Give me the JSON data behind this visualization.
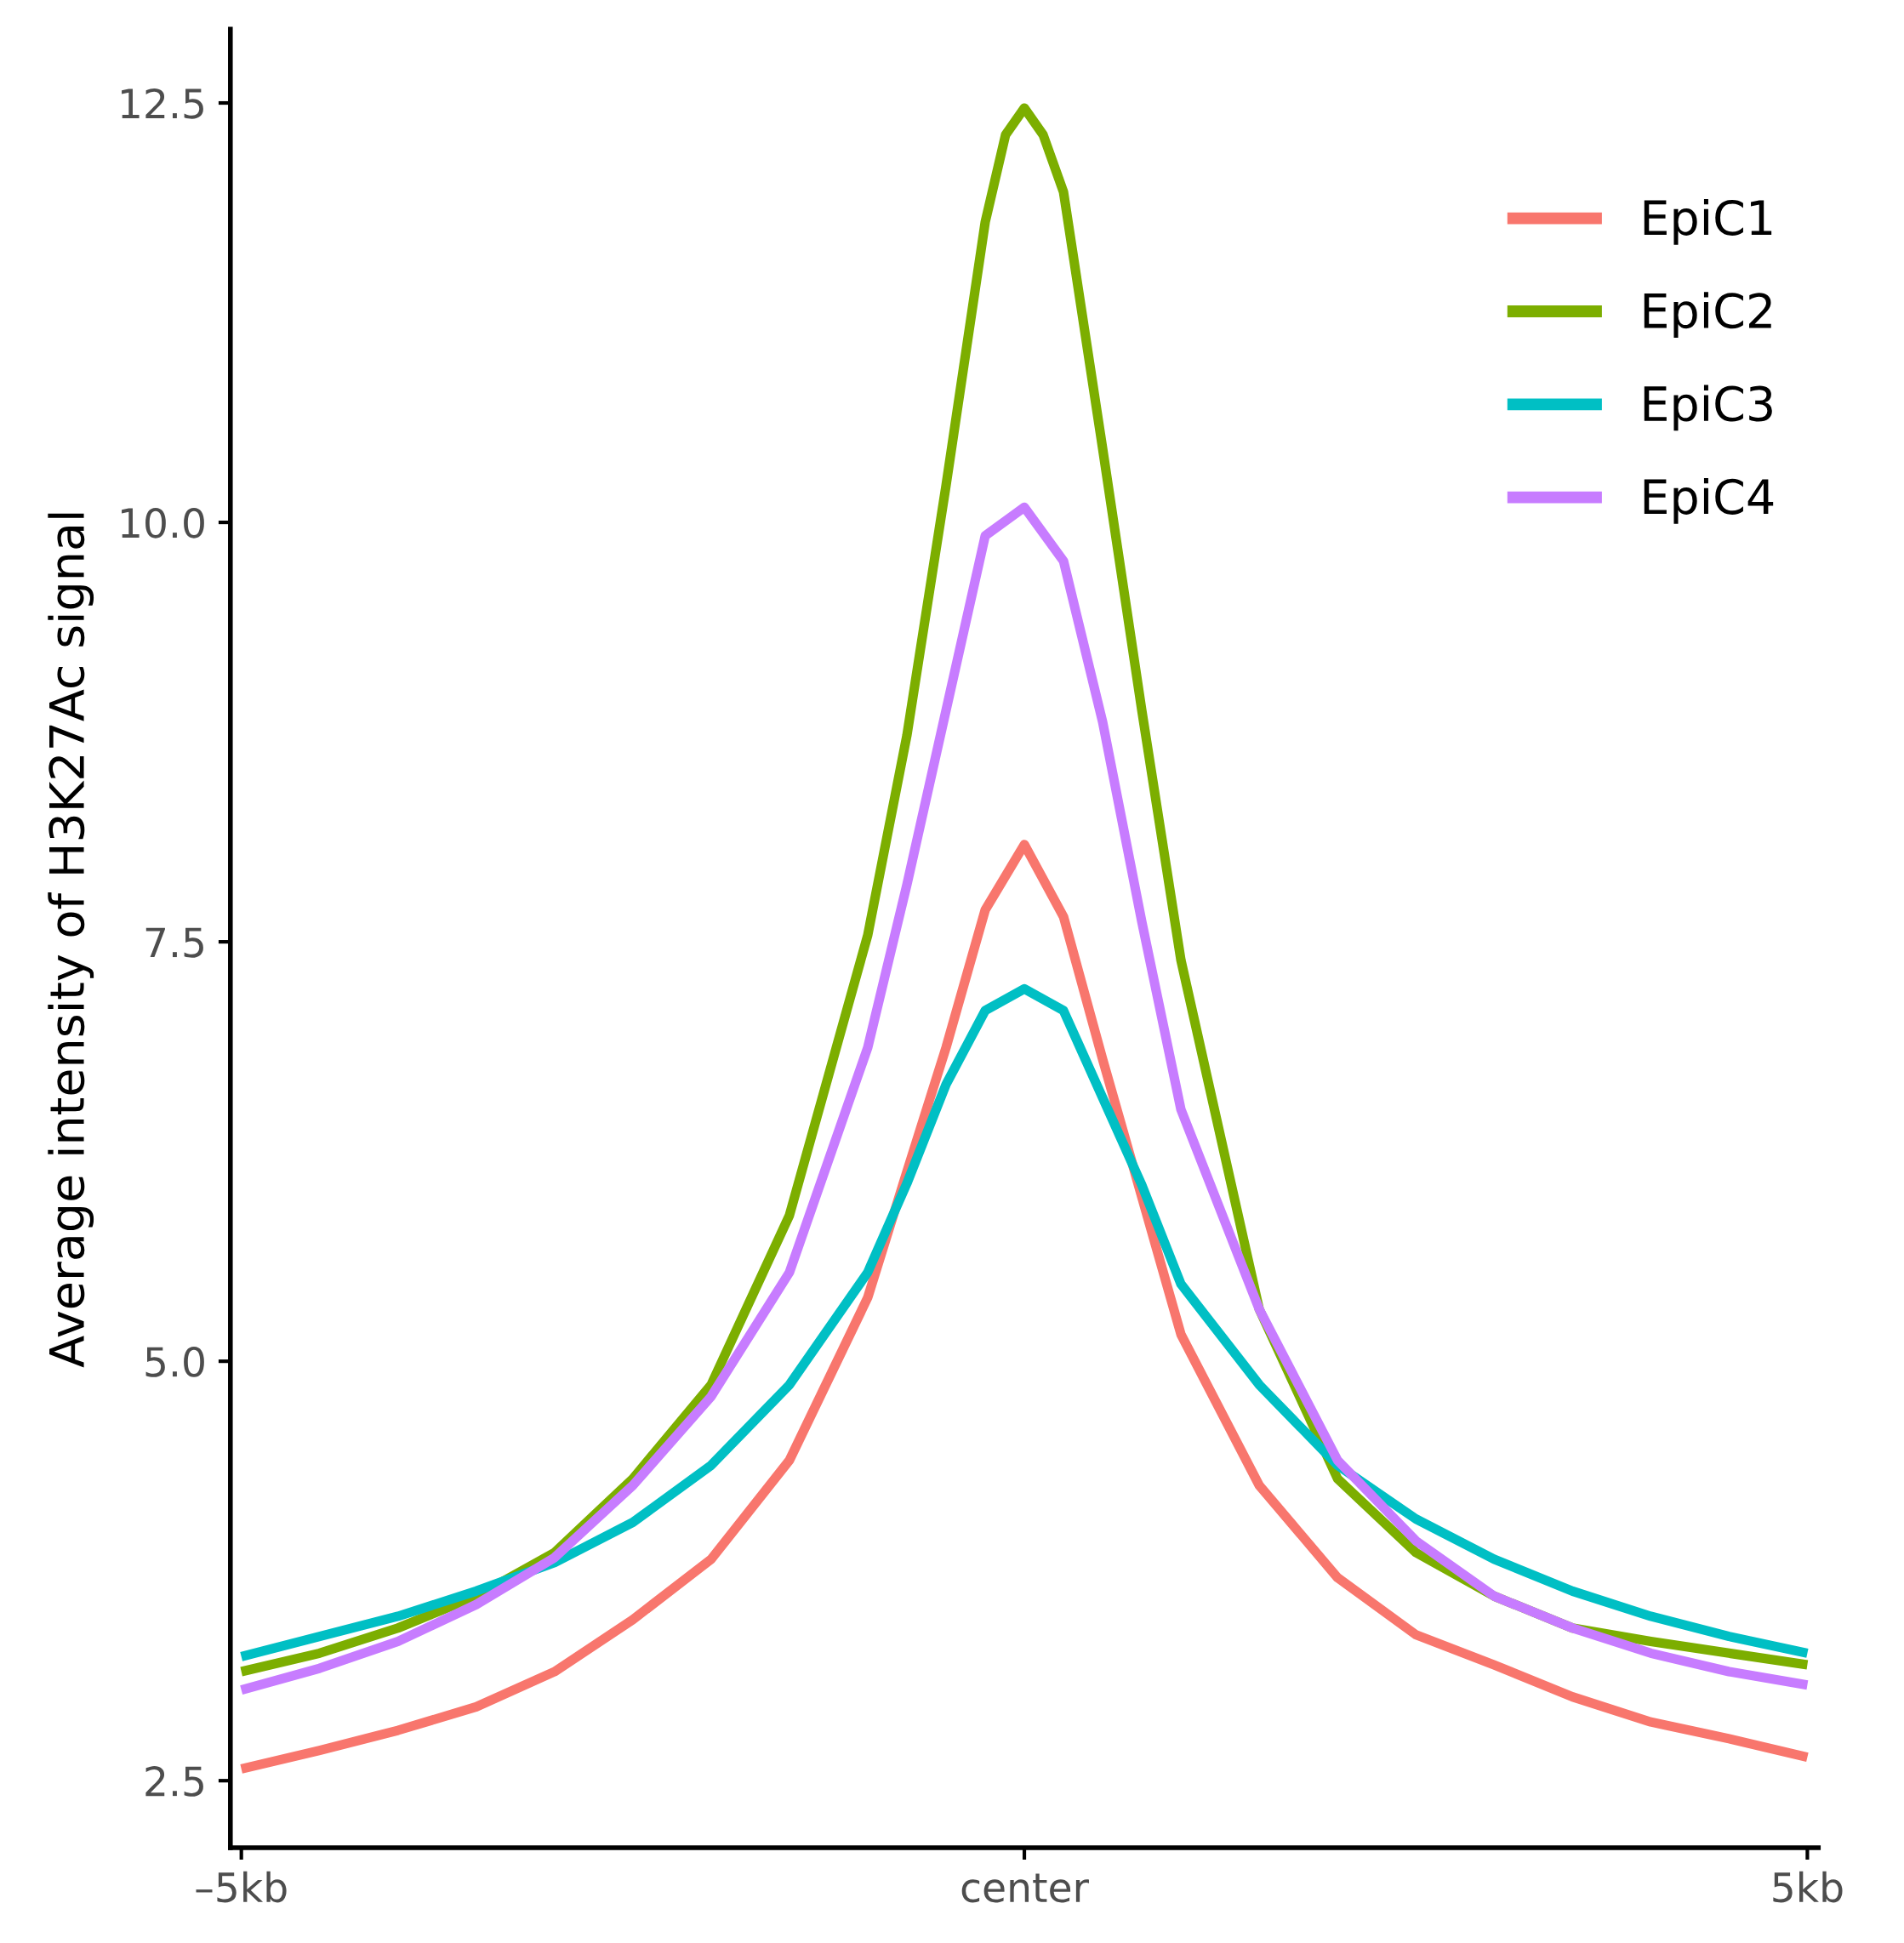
{
  "chart_data": {
    "type": "line",
    "ylabel": "Average intensity of H3K27Ac signal",
    "xlim": [
      -5.07,
      5.07
    ],
    "xticks": [
      {
        "value": -5,
        "label": "–5kb"
      },
      {
        "value": 0,
        "label": "center"
      },
      {
        "value": 5,
        "label": "5kb"
      }
    ],
    "ylim": [
      2.1,
      12.94
    ],
    "yticks": [
      {
        "value": 2.5,
        "label": "2.5"
      },
      {
        "value": 5,
        "label": "5.0"
      },
      {
        "value": 7.5,
        "label": "7.5"
      },
      {
        "value": 10,
        "label": "10.0"
      },
      {
        "value": 12.5,
        "label": "12.5"
      }
    ],
    "grid": false,
    "legend": "top right",
    "line_style": "solid",
    "marker": "none",
    "series": [
      {
        "name": "EpiC1",
        "color": "#f8766d",
        "x": [
          -5,
          -4.5,
          -4,
          -3.5,
          -3,
          -2.5,
          -2,
          -1.5,
          -1,
          -0.75,
          -0.5,
          -0.25,
          0,
          0.25,
          0.5,
          0.75,
          1,
          1.5,
          2,
          2.5,
          3,
          3.5,
          4,
          4.5,
          5
        ],
        "values": [
          2.57,
          2.68,
          2.8,
          2.94,
          3.15,
          3.46,
          3.82,
          4.41,
          5.38,
          6.13,
          6.87,
          7.69,
          8.08,
          7.65,
          6.8,
          5.98,
          5.16,
          4.26,
          3.71,
          3.37,
          3.19,
          3.0,
          2.85,
          2.75,
          2.64
        ]
      },
      {
        "name": "EpiC2",
        "color": "#7cae00",
        "x": [
          -5,
          -4.5,
          -4,
          -3.5,
          -3,
          -2.5,
          -2,
          -1.5,
          -1,
          -0.75,
          -0.5,
          -0.25,
          -0.12,
          0,
          0.12,
          0.25,
          0.5,
          0.75,
          1,
          1.5,
          2,
          2.5,
          3,
          3.5,
          4,
          4.5,
          5
        ],
        "values": [
          3.15,
          3.26,
          3.41,
          3.6,
          3.86,
          4.3,
          4.86,
          5.87,
          7.54,
          8.73,
          10.22,
          11.79,
          12.31,
          12.47,
          12.31,
          11.97,
          10.44,
          8.88,
          7.39,
          5.31,
          4.3,
          3.86,
          3.6,
          3.41,
          3.33,
          3.26,
          3.19
        ]
      },
      {
        "name": "EpiC3",
        "color": "#00bfc4",
        "x": [
          -5,
          -4.5,
          -4,
          -3.5,
          -3,
          -2.5,
          -2,
          -1.5,
          -1,
          -0.75,
          -0.5,
          -0.25,
          0,
          0.25,
          0.5,
          0.75,
          1,
          1.5,
          2,
          2.5,
          3,
          3.5,
          4,
          4.5,
          5
        ],
        "values": [
          3.24,
          3.36,
          3.48,
          3.63,
          3.8,
          4.04,
          4.38,
          4.86,
          5.53,
          6.06,
          6.65,
          7.09,
          7.22,
          7.09,
          6.57,
          6.05,
          5.46,
          4.86,
          4.38,
          4.06,
          3.82,
          3.63,
          3.48,
          3.36,
          3.26
        ]
      },
      {
        "name": "EpiC4",
        "color": "#c77cff",
        "x": [
          -5,
          -4.5,
          -4,
          -3.5,
          -3,
          -2.5,
          -2,
          -1.5,
          -1,
          -0.75,
          -0.5,
          -0.25,
          0,
          0.25,
          0.5,
          0.75,
          1,
          1.5,
          2,
          2.5,
          3,
          3.5,
          4,
          4.5,
          5
        ],
        "values": [
          3.04,
          3.17,
          3.33,
          3.55,
          3.83,
          4.26,
          4.79,
          5.53,
          6.87,
          7.84,
          8.88,
          9.92,
          10.09,
          9.77,
          8.81,
          7.62,
          6.5,
          5.31,
          4.41,
          3.93,
          3.6,
          3.41,
          3.26,
          3.15,
          3.07
        ]
      }
    ]
  }
}
